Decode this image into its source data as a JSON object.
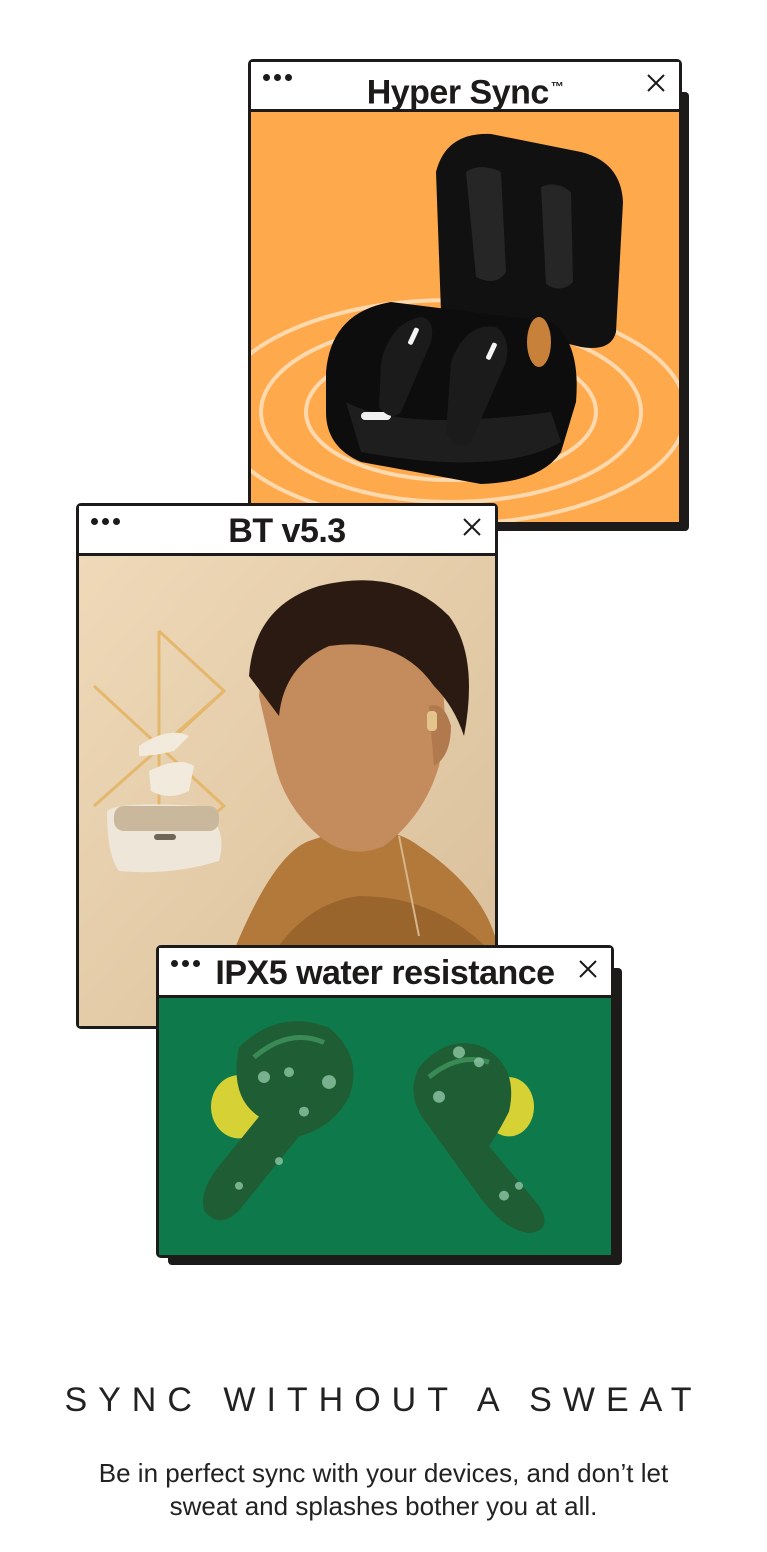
{
  "windows": {
    "hyper_sync": {
      "title": "Hyper Sync",
      "title_mark": "™"
    },
    "bt": {
      "title": "BT v5.3"
    },
    "ipx5": {
      "title": "IPX5 water resistance"
    }
  },
  "icons": {
    "window_dots": "menu-dots-icon",
    "close": "close-icon"
  },
  "colors": {
    "orange_panel": "#ffa94d",
    "beige_panel": "#ead3b2",
    "green_panel": "#0e7a4c",
    "ink": "#1c1b1a"
  },
  "section": {
    "headline": "SYNC WITHOUT A SWEAT",
    "description": "Be in perfect sync with your devices, and don’t let sweat and splashes bother you at all."
  }
}
